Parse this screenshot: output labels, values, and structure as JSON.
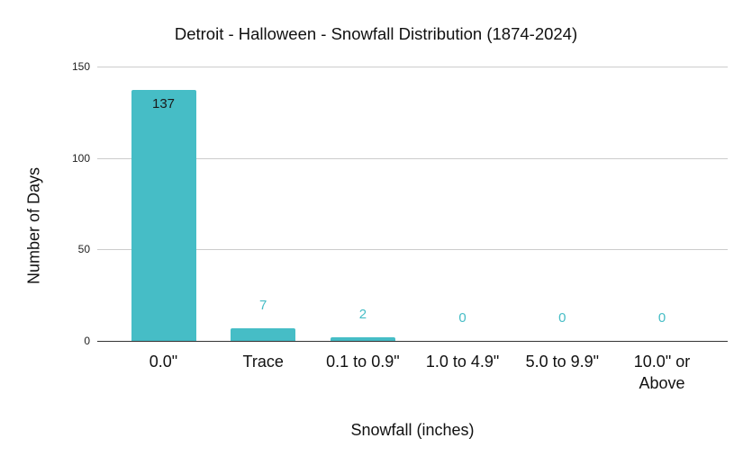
{
  "chart_data": {
    "type": "bar",
    "title": "Detroit - Halloween - Snowfall Distribution (1874-2024)",
    "xlabel": "Snowfall (inches)",
    "ylabel": "Number of Days",
    "categories": [
      "0.0\"",
      "Trace",
      "0.1 to 0.9\"",
      "1.0 to 4.9\"",
      "5.0 to 9.9\"",
      "10.0\" or Above"
    ],
    "values": [
      137,
      7,
      2,
      0,
      0,
      0
    ],
    "data_labels": [
      "137",
      "7",
      "2",
      "0",
      "0",
      "0"
    ],
    "ylim": [
      0,
      150
    ],
    "yticks": [
      "0",
      "50",
      "100",
      "150"
    ],
    "grid": true,
    "legend": "none",
    "colors": {
      "bar": "#46bdc6",
      "label_inside": "#1a1a1a",
      "label_outside": "#46bdc6"
    }
  },
  "xtick_lines": [
    [
      "0.0\""
    ],
    [
      "Trace"
    ],
    [
      "0.1 to 0.9\""
    ],
    [
      "1.0 to 4.9\""
    ],
    [
      "5.0 to 9.9\""
    ],
    [
      "10.0\" or",
      "Above"
    ]
  ]
}
